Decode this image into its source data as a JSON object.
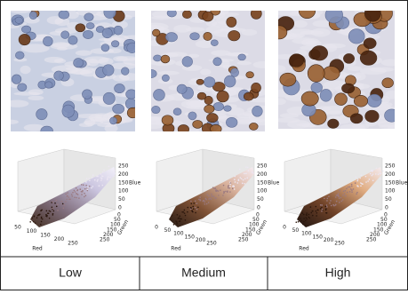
{
  "panels": [
    {
      "label": "Low",
      "plot": {
        "red": {
          "title": "Red",
          "ticks": [
            50,
            100,
            150,
            200,
            250
          ]
        },
        "green": {
          "title": "Green",
          "ticks": [
            0,
            50,
            100,
            150,
            200,
            250
          ]
        },
        "blue": {
          "title": "Blue",
          "ticks": [
            0,
            50,
            100,
            150,
            200,
            250
          ]
        }
      }
    },
    {
      "label": "Medium",
      "plot": {
        "red": {
          "title": "Red",
          "ticks": [
            0,
            50,
            100,
            150,
            200,
            250
          ]
        },
        "green": {
          "title": "Green",
          "ticks": [
            0,
            50,
            100,
            150,
            200,
            250
          ]
        },
        "blue": {
          "title": "Blue",
          "ticks": [
            0,
            50,
            100,
            150,
            200,
            250
          ]
        }
      }
    },
    {
      "label": "High",
      "plot": {
        "red": {
          "title": "Red",
          "ticks": [
            0,
            50,
            100,
            150,
            200,
            250
          ]
        },
        "green": {
          "title": "Green",
          "ticks": [
            0,
            50,
            100,
            150,
            200,
            250
          ]
        },
        "blue": {
          "title": "Blue",
          "ticks": [
            0,
            50,
            100,
            150,
            200,
            250
          ]
        }
      }
    }
  ]
}
